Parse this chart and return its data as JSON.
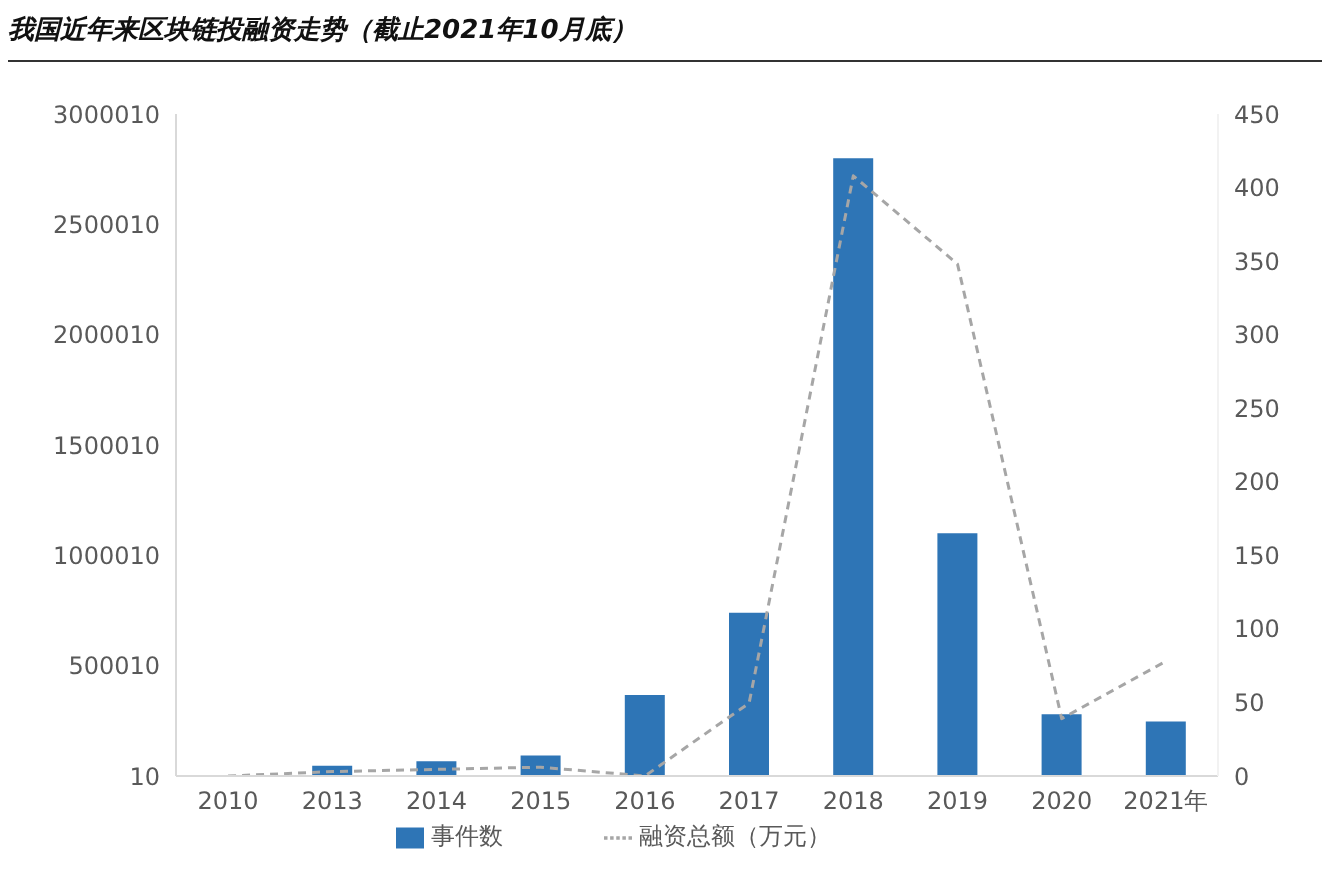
{
  "chart_data": {
    "type": "bar",
    "title": "我国近年来区块链投融资走势（截止2021年10月底）",
    "categories": [
      "2010",
      "2013",
      "2014",
      "2015",
      "2016",
      "2017",
      "2018",
      "2019",
      "2020",
      "2021年"
    ],
    "series": [
      {
        "name": "事件数",
        "color": "#2e75b6",
        "axis": "y2",
        "values": [
          0,
          7,
          10,
          14,
          55,
          111,
          420,
          165,
          42,
          37
        ]
      },
      {
        "name": "融资总额（万元）",
        "type": "line",
        "color": "#a6a6a6",
        "line_style": "dashed",
        "marker": "none",
        "values": [
          10,
          20000,
          30000,
          40000,
          10,
          330000,
          2720000,
          2320000,
          260000,
          520000
        ]
      }
    ],
    "ylim": [
      10,
      3000010
    ],
    "yticks": [
      10,
      500010,
      1000010,
      1500010,
      2000010,
      2500010,
      3000010
    ],
    "y2lim": [
      0,
      450
    ],
    "y2ticks": [
      0,
      50,
      100,
      150,
      200,
      250,
      300,
      350,
      400,
      450
    ],
    "legend": "bottom"
  }
}
